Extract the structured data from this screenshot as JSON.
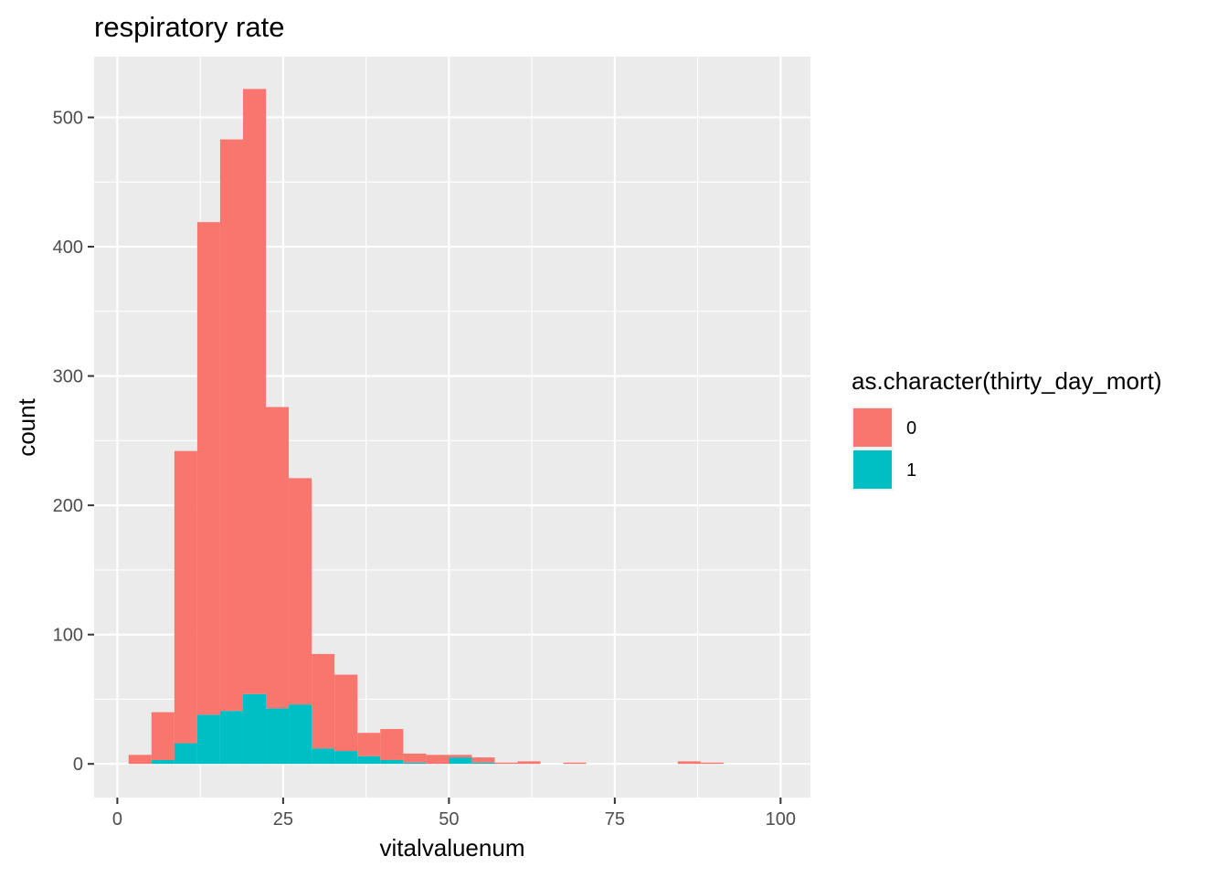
{
  "chart_data": {
    "type": "bar",
    "subtype": "stacked-histogram",
    "title": "respiratory rate",
    "xlabel": "vitalvaluenum",
    "ylabel": "count",
    "xlim": [
      -3.5,
      104.5
    ],
    "ylim": [
      -26,
      547
    ],
    "x_ticks": [
      0,
      25,
      50,
      75,
      100
    ],
    "x_tick_labels": [
      "0",
      "25",
      "50",
      "75",
      "100"
    ],
    "y_ticks": [
      0,
      100,
      200,
      300,
      400,
      500
    ],
    "y_tick_labels": [
      "0",
      "100",
      "200",
      "300",
      "400",
      "500"
    ],
    "grid": true,
    "legend": {
      "title": "as.character(thirty_day_mort)",
      "position": "right"
    },
    "bin_width": 3.45,
    "bin_starts": [
      1.7,
      5.15,
      8.6,
      12.05,
      15.5,
      18.95,
      22.4,
      25.85,
      29.3,
      32.75,
      36.2,
      39.65,
      43.1,
      46.55,
      50.0,
      53.45,
      56.9,
      60.35,
      63.8,
      67.25,
      70.7,
      74.15,
      77.6,
      81.05,
      84.5,
      87.95
    ],
    "series": [
      {
        "name": "0",
        "color": "#F8766D",
        "values": [
          7,
          37,
          226,
          381,
          442,
          468,
          233,
          175,
          73,
          59,
          18,
          24,
          7,
          7,
          2,
          4,
          1,
          2,
          0,
          1,
          0,
          0,
          0,
          0,
          2,
          1
        ]
      },
      {
        "name": "1",
        "color": "#00BFC4",
        "values": [
          0,
          3,
          16,
          38,
          41,
          54,
          43,
          46,
          12,
          10,
          6,
          3,
          1,
          0,
          5,
          1,
          0,
          0,
          0,
          0,
          0,
          0,
          0,
          0,
          0,
          0
        ]
      }
    ]
  }
}
